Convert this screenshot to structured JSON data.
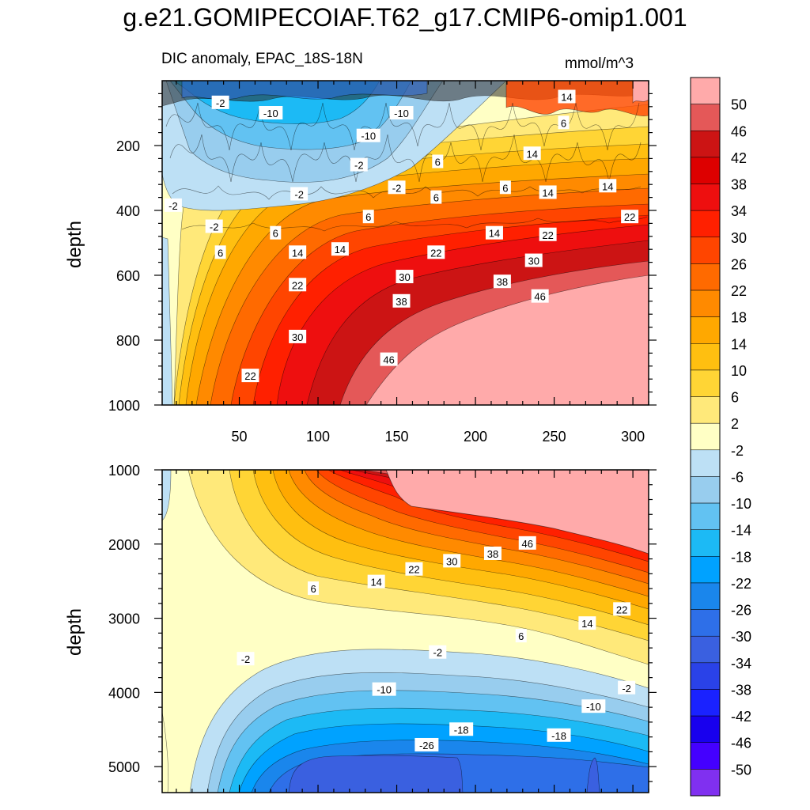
{
  "title": "g.e21.GOMIPECOIAF.T62_g17.CMIP6-omip1.001",
  "subtitle_left": "DIC anomaly, EPAC_18S-18N",
  "subtitle_right": "mmol/m^3",
  "chart_data": [
    {
      "type": "heatmap",
      "name": "upper-panel",
      "xlabel": "",
      "ylabel": "depth",
      "xlim": [
        1,
        310
      ],
      "ylim": [
        0,
        1000
      ],
      "y_inverted": true,
      "xticks": [
        "50",
        "100",
        "150",
        "200",
        "250",
        "300"
      ],
      "yticks": [
        "200",
        "400",
        "600",
        "800",
        "1000"
      ],
      "contour_labels": [
        {
          "text": "-2",
          "x": 38,
          "y": 68
        },
        {
          "text": "-10",
          "x": 70,
          "y": 100
        },
        {
          "text": "-10",
          "x": 153,
          "y": 100
        },
        {
          "text": "-10",
          "x": 132,
          "y": 170
        },
        {
          "text": "-2",
          "x": 126,
          "y": 260
        },
        {
          "text": "-2",
          "x": 150,
          "y": 330
        },
        {
          "text": "-2",
          "x": 88,
          "y": 350
        },
        {
          "text": "-2",
          "x": 8,
          "y": 385
        },
        {
          "text": "-2",
          "x": 34,
          "y": 450
        },
        {
          "text": "6",
          "x": 176,
          "y": 250
        },
        {
          "text": "6",
          "x": 175,
          "y": 360
        },
        {
          "text": "6",
          "x": 132,
          "y": 420
        },
        {
          "text": "6",
          "x": 73,
          "y": 470
        },
        {
          "text": "6",
          "x": 38,
          "y": 530
        },
        {
          "text": "6",
          "x": 219,
          "y": 330
        },
        {
          "text": "6",
          "x": 256,
          "y": 130
        },
        {
          "text": "14",
          "x": 258,
          "y": 50
        },
        {
          "text": "14",
          "x": 236,
          "y": 225
        },
        {
          "text": "14",
          "x": 246,
          "y": 345
        },
        {
          "text": "14",
          "x": 284,
          "y": 325
        },
        {
          "text": "14",
          "x": 212,
          "y": 470
        },
        {
          "text": "14",
          "x": 114,
          "y": 520
        },
        {
          "text": "14",
          "x": 87,
          "y": 530
        },
        {
          "text": "22",
          "x": 298,
          "y": 420
        },
        {
          "text": "22",
          "x": 246,
          "y": 475
        },
        {
          "text": "22",
          "x": 175,
          "y": 530
        },
        {
          "text": "22",
          "x": 87,
          "y": 630
        },
        {
          "text": "22",
          "x": 57,
          "y": 910
        },
        {
          "text": "30",
          "x": 237,
          "y": 555
        },
        {
          "text": "30",
          "x": 155,
          "y": 605
        },
        {
          "text": "30",
          "x": 87,
          "y": 790
        },
        {
          "text": "38",
          "x": 217,
          "y": 620
        },
        {
          "text": "38",
          "x": 153,
          "y": 680
        },
        {
          "text": "46",
          "x": 241,
          "y": 665
        },
        {
          "text": "46",
          "x": 145,
          "y": 860
        }
      ]
    },
    {
      "type": "heatmap",
      "name": "lower-panel",
      "xlabel": "",
      "ylabel": "depth",
      "xlim": [
        1,
        310
      ],
      "ylim": [
        1000,
        5350
      ],
      "y_inverted": true,
      "yticks": [
        "1000",
        "2000",
        "3000",
        "4000",
        "5000"
      ],
      "contour_labels": [
        {
          "text": "46",
          "x": 233,
          "y": 1990
        },
        {
          "text": "38",
          "x": 211,
          "y": 2130
        },
        {
          "text": "30",
          "x": 185,
          "y": 2230
        },
        {
          "text": "22",
          "x": 161,
          "y": 2340
        },
        {
          "text": "14",
          "x": 137,
          "y": 2510
        },
        {
          "text": "6",
          "x": 97,
          "y": 2600
        },
        {
          "text": "22",
          "x": 293,
          "y": 2880
        },
        {
          "text": "14",
          "x": 271,
          "y": 3070
        },
        {
          "text": "6",
          "x": 229,
          "y": 3240
        },
        {
          "text": "-2",
          "x": 54,
          "y": 3550
        },
        {
          "text": "-2",
          "x": 176,
          "y": 3460
        },
        {
          "text": "-2",
          "x": 296,
          "y": 3940
        },
        {
          "text": "-10",
          "x": 142,
          "y": 3960
        },
        {
          "text": "-10",
          "x": 275,
          "y": 4190
        },
        {
          "text": "-18",
          "x": 191,
          "y": 4500
        },
        {
          "text": "-18",
          "x": 253,
          "y": 4580
        },
        {
          "text": "-26",
          "x": 169,
          "y": 4710
        }
      ]
    }
  ],
  "colorbar": {
    "labels": [
      "50",
      "46",
      "42",
      "38",
      "34",
      "30",
      "26",
      "22",
      "18",
      "14",
      "10",
      "6",
      "2",
      "-2",
      "-6",
      "-10",
      "-14",
      "-18",
      "-22",
      "-26",
      "-30",
      "-34",
      "-38",
      "-42",
      "-46",
      "-50"
    ],
    "colors": [
      "#ffaaaa",
      "#e45858",
      "#cc1414",
      "#dd0000",
      "#ee0f0f",
      "#ff2000",
      "#ff4500",
      "#ff6a00",
      "#ff8a00",
      "#ffa800",
      "#ffbf10",
      "#ffd535",
      "#ffe97a",
      "#ffffc5",
      "#bde0f5",
      "#98cdee",
      "#62c2f2",
      "#1cbaf5",
      "#00a2ff",
      "#1a86ec",
      "#2e6fe8",
      "#3a60e0",
      "#2a42e8",
      "#1a22ff",
      "#1800ee",
      "#4400ff",
      "#8030f0"
    ]
  }
}
